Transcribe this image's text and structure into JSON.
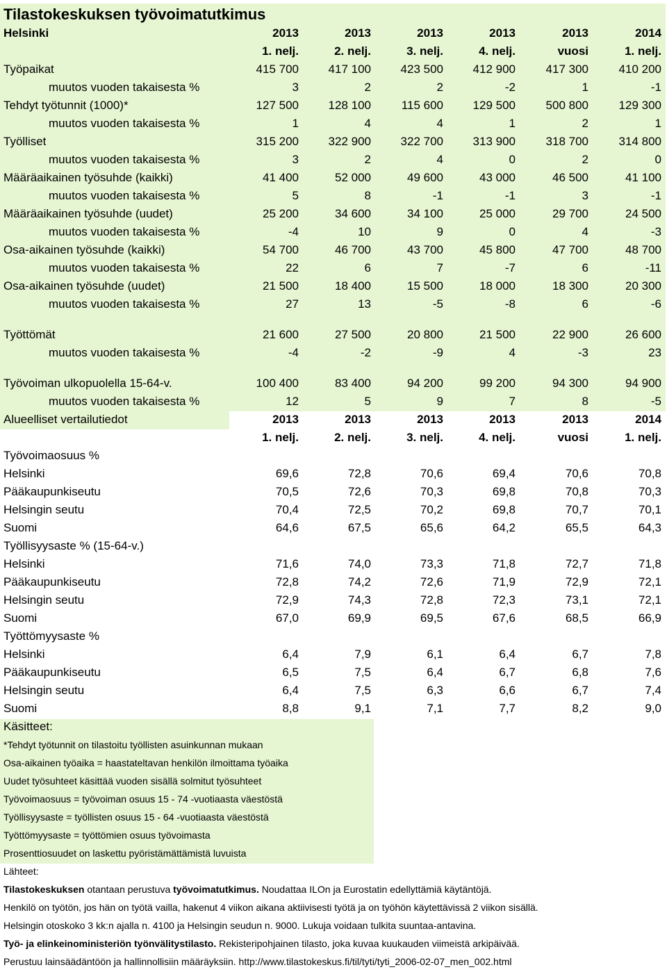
{
  "title": "Tilastokeskuksen työvoimatutkimus",
  "main": {
    "label": "Helsinki",
    "columns": [
      {
        "year": "2013",
        "period": "1. nelj."
      },
      {
        "year": "2013",
        "period": "2. nelj."
      },
      {
        "year": "2013",
        "period": "3. nelj."
      },
      {
        "year": "2013",
        "period": "4. nelj."
      },
      {
        "year": "2013",
        "period": "vuosi"
      },
      {
        "year": "2014",
        "period": "1. nelj."
      }
    ],
    "groups": [
      [
        {
          "label": "Työpaikat",
          "values": [
            "415 700",
            "417 100",
            "423 500",
            "412 900",
            "417 300",
            "410 200"
          ],
          "change": {
            "label": "muutos vuoden takaisesta %",
            "values": [
              "3",
              "2",
              "2",
              "-2",
              "1",
              "-1"
            ]
          }
        },
        {
          "label": "Tehdyt työtunnit (1000)*",
          "values": [
            "127 500",
            "128 100",
            "115 600",
            "129 500",
            "500 800",
            "129 300"
          ],
          "change": {
            "label": "muutos vuoden takaisesta %",
            "values": [
              "1",
              "4",
              "4",
              "1",
              "2",
              "1"
            ]
          }
        },
        {
          "label": "Työlliset",
          "values": [
            "315 200",
            "322 900",
            "322 700",
            "313 900",
            "318 700",
            "314 800"
          ],
          "change": {
            "label": "muutos vuoden takaisesta %",
            "values": [
              "3",
              "2",
              "4",
              "0",
              "2",
              "0"
            ]
          }
        },
        {
          "label": "Määräaikainen työsuhde (kaikki)",
          "values": [
            "41 400",
            "52 000",
            "49 600",
            "43 000",
            "46 500",
            "41 100"
          ],
          "change": {
            "label": "muutos vuoden takaisesta %",
            "values": [
              "5",
              "8",
              "-1",
              "-1",
              "3",
              "-1"
            ]
          }
        },
        {
          "label": "Määräaikainen työsuhde (uudet)",
          "values": [
            "25 200",
            "34 600",
            "34 100",
            "25 000",
            "29 700",
            "24 500"
          ],
          "change": {
            "label": "muutos vuoden takaisesta %",
            "values": [
              "-4",
              "10",
              "9",
              "0",
              "4",
              "-3"
            ]
          }
        },
        {
          "label": "Osa-aikainen työsuhde (kaikki)",
          "values": [
            "54 700",
            "46 700",
            "43 700",
            "45 800",
            "47 700",
            "48 700"
          ],
          "change": {
            "label": "muutos vuoden takaisesta %",
            "values": [
              "22",
              "6",
              "7",
              "-7",
              "6",
              "-11"
            ]
          }
        },
        {
          "label": "Osa-aikainen työsuhde (uudet)",
          "values": [
            "21 500",
            "18 400",
            "15 500",
            "18 000",
            "18 300",
            "20 300"
          ],
          "change": {
            "label": "muutos vuoden takaisesta %",
            "values": [
              "27",
              "13",
              "-5",
              "-8",
              "6",
              "-6"
            ]
          }
        }
      ],
      [
        {
          "label": "Työttömät",
          "values": [
            "21 600",
            "27 500",
            "20 800",
            "21 500",
            "22 900",
            "26 600"
          ],
          "change": {
            "label": "muutos vuoden takaisesta %",
            "values": [
              "-4",
              "-2",
              "-9",
              "4",
              "-3",
              "23"
            ]
          }
        }
      ],
      [
        {
          "label": "Työvoiman ulkopuolella 15-64-v.",
          "values": [
            "100 400",
            "83 400",
            "94 200",
            "99 200",
            "94 300",
            "94 900"
          ],
          "change": {
            "label": "muutos vuoden takaisesta %",
            "values": [
              "12",
              "5",
              "9",
              "7",
              "8",
              "-5"
            ]
          }
        }
      ]
    ]
  },
  "regional": {
    "label": "Alueelliset vertailutiedot",
    "columns": [
      {
        "year": "2013",
        "period": "1. nelj."
      },
      {
        "year": "2013",
        "period": "2. nelj."
      },
      {
        "year": "2013",
        "period": "3. nelj."
      },
      {
        "year": "2013",
        "period": "4. nelj."
      },
      {
        "year": "2013",
        "period": "vuosi"
      },
      {
        "year": "2014",
        "period": "1. nelj."
      }
    ],
    "sections": [
      {
        "title": "Työvoimaosuus %",
        "rows": [
          {
            "label": "Helsinki",
            "values": [
              "69,6",
              "72,8",
              "70,6",
              "69,4",
              "70,6",
              "70,8"
            ]
          },
          {
            "label": "Pääkaupunkiseutu",
            "values": [
              "70,5",
              "72,6",
              "70,3",
              "69,8",
              "70,8",
              "70,3"
            ]
          },
          {
            "label": "Helsingin seutu",
            "values": [
              "70,4",
              "72,5",
              "70,2",
              "69,8",
              "70,7",
              "70,1"
            ]
          },
          {
            "label": "Suomi",
            "values": [
              "64,6",
              "67,5",
              "65,6",
              "64,2",
              "65,5",
              "64,3"
            ]
          }
        ]
      },
      {
        "title": "Työllisyysaste % (15-64-v.)",
        "rows": [
          {
            "label": "Helsinki",
            "values": [
              "71,6",
              "74,0",
              "73,3",
              "71,8",
              "72,7",
              "71,8"
            ]
          },
          {
            "label": "Pääkaupunkiseutu",
            "values": [
              "72,8",
              "74,2",
              "72,6",
              "71,9",
              "72,9",
              "72,1"
            ]
          },
          {
            "label": "Helsingin seutu",
            "values": [
              "72,9",
              "74,3",
              "72,8",
              "72,3",
              "73,1",
              "72,1"
            ]
          },
          {
            "label": "Suomi",
            "values": [
              "67,0",
              "69,9",
              "69,5",
              "67,6",
              "68,5",
              "66,9"
            ]
          }
        ]
      },
      {
        "title": "Työttömyysaste %",
        "rows": [
          {
            "label": "Helsinki",
            "values": [
              "6,4",
              "7,9",
              "6,1",
              "6,4",
              "6,7",
              "7,8"
            ]
          },
          {
            "label": "Pääkaupunkiseutu",
            "values": [
              "6,5",
              "7,5",
              "6,4",
              "6,7",
              "6,8",
              "7,6"
            ]
          },
          {
            "label": "Helsingin seutu",
            "values": [
              "6,4",
              "7,5",
              "6,3",
              "6,6",
              "6,7",
              "7,4"
            ]
          },
          {
            "label": "Suomi",
            "values": [
              "8,8",
              "9,1",
              "7,1",
              "7,7",
              "8,2",
              "9,0"
            ]
          }
        ]
      }
    ]
  },
  "concepts": {
    "title": "Käsitteet:",
    "items": [
      "*Tehdyt työtunnit on tilastoitu työllisten asuinkunnan mukaan",
      "Osa-aikainen työaika = haastateltavan henkilön ilmoittama työaika",
      "Uudet työsuhteet käsittää vuoden sisällä solmitut työsuhteet",
      "Työvoimaosuus = työvoiman osuus 15 - 74 -vuotiaasta väestöstä",
      "Työllisyysaste = työllisten osuus 15 - 64 -vuotiaasta väestöstä",
      "Työttömyysaste = työttömien osuus työvoimasta",
      "Prosenttiosuudet on laskettu pyöristämättämistä luvuista"
    ]
  },
  "sources": {
    "title": "Lähteet:",
    "items": [
      {
        "parts": [
          {
            "text": "Tilastokeskuksen",
            "bold": true
          },
          {
            "text": " otantaan perustuva "
          },
          {
            "text": "työvoimatutkimus.",
            "bold": true
          },
          {
            "text": " Noudattaa ILOn ja Eurostatin edellyttämiä käytäntöjä."
          }
        ]
      },
      {
        "parts": [
          {
            "text": "Henkilö on työtön, jos hän on työtä vailla, hakenut 4 viikon aikana aktiivisesti työtä ja on työhön käytettävissä 2 viikon sisällä."
          }
        ]
      },
      {
        "parts": [
          {
            "text": "Helsingin otoskoko 3 kk:n ajalla n. 4100 ja Helsingin seudun n. 9000. Lukuja voidaan tulkita suuntaa-antavina."
          }
        ]
      },
      {
        "parts": [
          {
            "text": "Työ- ja elinkeinoministeriön työnvälitystilasto.",
            "bold": true
          },
          {
            "text": " Rekisteripohjainen tilasto, joka kuvaa kuukauden viimeistä arkipäivää."
          }
        ]
      },
      {
        "parts": [
          {
            "text": "Perustuu lainsäädäntöön ja hallinnollisiin määräyksiin. http://www.tilastokeskus.fi/til/tyti/tyti_2006-02-07_men_002.html"
          }
        ]
      }
    ]
  }
}
